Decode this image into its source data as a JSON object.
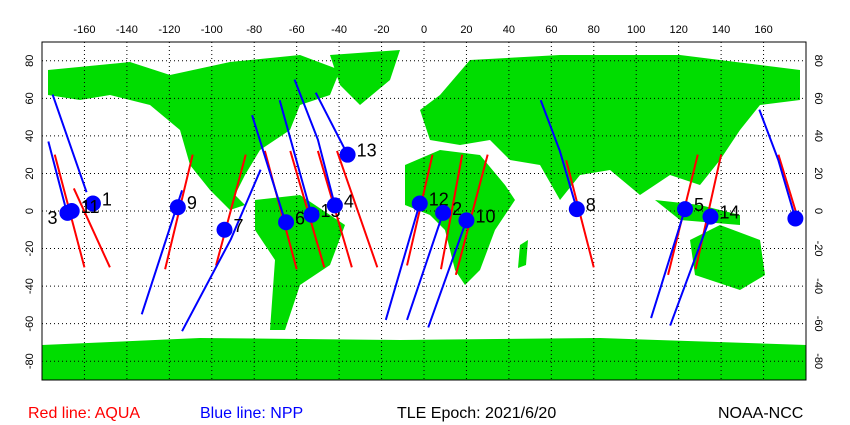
{
  "map": {
    "xlim": [
      -180,
      180
    ],
    "ylim": [
      -90,
      90
    ],
    "xticks": [
      -160,
      -140,
      -120,
      -100,
      -80,
      -60,
      -40,
      -20,
      0,
      20,
      40,
      60,
      80,
      100,
      120,
      140,
      160
    ],
    "yticks": [
      -80,
      -60,
      -40,
      -20,
      0,
      20,
      40,
      60,
      80
    ],
    "tracks": [
      {
        "color": "#ff0000",
        "points": [
          [
            -174,
            30
          ],
          [
            -160,
            -30
          ]
        ]
      },
      {
        "color": "#ff0000",
        "points": [
          [
            -165,
            12
          ],
          [
            -148,
            -30
          ]
        ]
      },
      {
        "color": "#0000ff",
        "points": [
          [
            -177,
            37
          ],
          [
            -168,
            -2
          ]
        ]
      },
      {
        "color": "#0000ff",
        "points": [
          [
            -175,
            62
          ],
          [
            -159,
            10
          ]
        ]
      },
      {
        "color": "#ff0000",
        "points": [
          [
            -109,
            30
          ],
          [
            -122,
            -31
          ]
        ]
      },
      {
        "color": "#0000ff",
        "points": [
          [
            -114,
            11
          ],
          [
            -133,
            -55
          ]
        ]
      },
      {
        "color": "#ff0000",
        "points": [
          [
            -84,
            30
          ],
          [
            -98,
            -29
          ]
        ]
      },
      {
        "color": "#0000ff",
        "points": [
          [
            -77,
            22
          ],
          [
            -91,
            -15
          ],
          [
            -114,
            -64
          ]
        ]
      },
      {
        "color": "#ff0000",
        "points": [
          [
            -75,
            32
          ],
          [
            -60,
            -31
          ]
        ]
      },
      {
        "color": "#0000ff",
        "points": [
          [
            -81,
            51
          ],
          [
            -65,
            -7
          ]
        ]
      },
      {
        "color": "#ff0000",
        "points": [
          [
            -63,
            32
          ],
          [
            -47,
            -30
          ]
        ]
      },
      {
        "color": "#0000ff",
        "points": [
          [
            -68,
            59
          ],
          [
            -53,
            -2
          ]
        ]
      },
      {
        "color": "#ff0000",
        "points": [
          [
            -50,
            32
          ],
          [
            -34,
            -30
          ]
        ]
      },
      {
        "color": "#0000ff",
        "points": [
          [
            -61,
            70
          ],
          [
            -50,
            38
          ],
          [
            -42,
            3
          ]
        ]
      },
      {
        "color": "#ff0000",
        "points": [
          [
            -41,
            32
          ],
          [
            -22,
            -30
          ]
        ]
      },
      {
        "color": "#0000ff",
        "points": [
          [
            -51,
            63
          ],
          [
            -36,
            30
          ]
        ]
      },
      {
        "color": "#ff0000",
        "points": [
          [
            4,
            30
          ],
          [
            -8,
            -29
          ]
        ]
      },
      {
        "color": "#0000ff",
        "points": [
          [
            -2,
            4
          ],
          [
            -18,
            -58
          ]
        ]
      },
      {
        "color": "#ff0000",
        "points": [
          [
            18,
            30
          ],
          [
            8,
            -31
          ]
        ]
      },
      {
        "color": "#0000ff",
        "points": [
          [
            9,
            -1
          ],
          [
            -8,
            -58
          ]
        ]
      },
      {
        "color": "#ff0000",
        "points": [
          [
            30,
            30
          ],
          [
            15,
            -34
          ]
        ]
      },
      {
        "color": "#0000ff",
        "points": [
          [
            20,
            -5
          ],
          [
            2,
            -62
          ]
        ]
      },
      {
        "color": "#ff0000",
        "points": [
          [
            67,
            27
          ],
          [
            80,
            -30
          ]
        ]
      },
      {
        "color": "#0000ff",
        "points": [
          [
            55,
            59
          ],
          [
            64,
            32
          ],
          [
            72,
            1
          ]
        ]
      },
      {
        "color": "#ff0000",
        "points": [
          [
            129,
            30
          ],
          [
            115,
            -34
          ]
        ]
      },
      {
        "color": "#0000ff",
        "points": [
          [
            123,
            1
          ],
          [
            107,
            -57
          ]
        ]
      },
      {
        "color": "#ff0000",
        "points": [
          [
            140,
            30
          ],
          [
            128,
            -31
          ]
        ]
      },
      {
        "color": "#0000ff",
        "points": [
          [
            135,
            -3
          ],
          [
            116,
            -61
          ]
        ]
      },
      {
        "color": "#ff0000",
        "points": [
          [
            167,
            30
          ],
          [
            177,
            -7
          ]
        ]
      },
      {
        "color": "#0000ff",
        "points": [
          [
            158,
            54
          ],
          [
            167,
            27
          ],
          [
            175,
            -4
          ]
        ]
      }
    ],
    "satellites": [
      {
        "label": "1",
        "lon": -156,
        "lat": 4,
        "color": "#0000ff"
      },
      {
        "label": "11",
        "lon": -166,
        "lat": 0,
        "color": "#0000ff"
      },
      {
        "label": "3",
        "lon": -168,
        "lat": -1,
        "color": "#0000ff"
      },
      {
        "label": "9",
        "lon": -116,
        "lat": 2,
        "color": "#0000ff"
      },
      {
        "label": "7",
        "lon": -94,
        "lat": -10,
        "color": "#0000ff"
      },
      {
        "label": "6",
        "lon": -65,
        "lat": -6,
        "color": "#0000ff"
      },
      {
        "label": "15",
        "lon": -53,
        "lat": -2,
        "color": "#0000ff"
      },
      {
        "label": "4",
        "lon": -42,
        "lat": 3,
        "color": "#0000ff"
      },
      {
        "label": "13",
        "lon": -36,
        "lat": 30,
        "color": "#0000ff"
      },
      {
        "label": "12",
        "lon": -2,
        "lat": 4,
        "color": "#0000ff"
      },
      {
        "label": "2",
        "lon": 9,
        "lat": -1,
        "color": "#0000ff"
      },
      {
        "label": "10",
        "lon": 20,
        "lat": -5,
        "color": "#0000ff"
      },
      {
        "label": "8",
        "lon": 72,
        "lat": 1,
        "color": "#0000ff"
      },
      {
        "label": "5",
        "lon": 123,
        "lat": 1,
        "color": "#0000ff"
      },
      {
        "label": "14",
        "lon": 135,
        "lat": -3,
        "color": "#0000ff"
      },
      {
        "label": null,
        "lon": 175,
        "lat": -4,
        "color": "#0000ff"
      }
    ]
  },
  "legend": {
    "aqua": "Red line: AQUA",
    "npp": "Blue line: NPP"
  },
  "epoch": "TLE Epoch: 2021/6/20",
  "source": "NOAA-NCC"
}
